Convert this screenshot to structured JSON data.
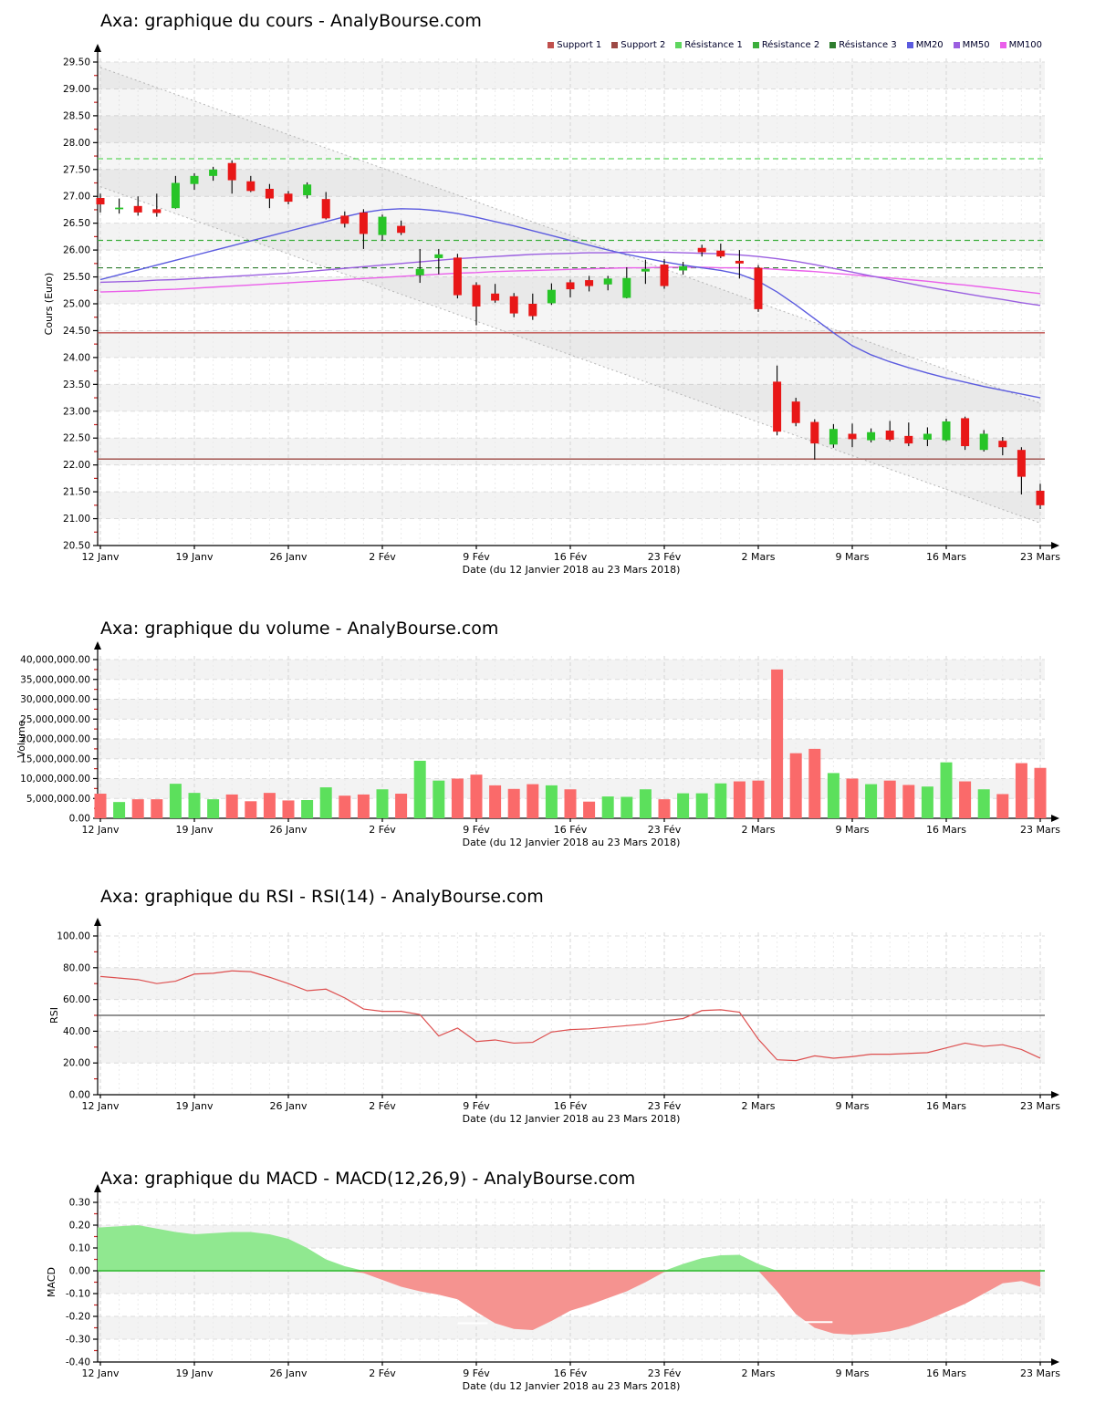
{
  "x_axis": {
    "tick_labels": [
      "12 Janv",
      "19 Janv",
      "26 Janv",
      "2 Fév",
      "9 Fév",
      "16 Fév",
      "23 Fév",
      "2 Mars",
      "9 Mars",
      "16 Mars",
      "23 Mars"
    ],
    "axis_label": "Date (du 12 Janvier 2018 au 23 Mars 2018)",
    "n_points": 51,
    "points_per_tick": 5
  },
  "chart_data": [
    {
      "type": "candlestick",
      "name": "price",
      "title": "Axa: graphique du cours - AnalyBourse.com",
      "ylabel": "Cours (Euro)",
      "ymin": 20.5,
      "ymax": 29.5,
      "ystep": 0.5,
      "y_ticks": [
        "29.50",
        "29.00",
        "28.50",
        "28.00",
        "27.50",
        "27.00",
        "26.50",
        "26.00",
        "25.50",
        "25.00",
        "24.50",
        "24.00",
        "23.50",
        "23.00",
        "22.50",
        "22.00",
        "21.50",
        "21.00",
        "20.50"
      ],
      "legend": [
        {
          "label": "Support 1",
          "color": "#c0504d"
        },
        {
          "label": "Support 2",
          "color": "#9d4a45"
        },
        {
          "label": "Résistance 1",
          "color": "#5fd65f"
        },
        {
          "label": "Résistance 2",
          "color": "#3cae3c"
        },
        {
          "label": "Résistance 3",
          "color": "#2e7d2e"
        },
        {
          "label": "MM20",
          "color": "#5b5bdf"
        },
        {
          "label": "MM50",
          "color": "#9b5fe0"
        },
        {
          "label": "MM100",
          "color": "#ea5fea"
        }
      ],
      "supports": [
        {
          "name": "Support 1",
          "value": 24.46,
          "color": "#c0504d"
        },
        {
          "name": "Support 2",
          "value": 22.11,
          "color": "#9d4a45"
        }
      ],
      "resistances": [
        {
          "name": "Résistance 1",
          "value": 27.7,
          "color": "#5fd65f"
        },
        {
          "name": "Résistance 2",
          "value": 26.18,
          "color": "#3cae3c"
        },
        {
          "name": "Résistance 3",
          "value": 25.67,
          "color": "#2e7d2e"
        }
      ],
      "channel": {
        "upper_start": 29.4,
        "upper_end": 23.15,
        "lower_start": 27.18,
        "lower_end": 20.92
      },
      "series": {
        "mm20": [
          25.45,
          25.54,
          25.63,
          25.72,
          25.81,
          25.9,
          25.99,
          26.08,
          26.17,
          26.26,
          26.35,
          26.44,
          26.53,
          26.62,
          26.7,
          26.75,
          26.77,
          26.76,
          26.73,
          26.68,
          26.61,
          26.53,
          26.45,
          26.36,
          26.27,
          26.18,
          26.09,
          26.0,
          25.92,
          25.85,
          25.78,
          25.72,
          25.67,
          25.62,
          25.55,
          25.42,
          25.22,
          24.98,
          24.72,
          24.46,
          24.22,
          24.05,
          23.92,
          23.81,
          23.71,
          23.62,
          23.54,
          23.46,
          23.39,
          23.32,
          23.25
        ],
        "mm50": [
          25.4,
          25.41,
          25.42,
          25.44,
          25.45,
          25.47,
          25.49,
          25.51,
          25.53,
          25.55,
          25.57,
          25.6,
          25.63,
          25.66,
          25.69,
          25.72,
          25.75,
          25.78,
          25.81,
          25.84,
          25.86,
          25.88,
          25.9,
          25.92,
          25.93,
          25.94,
          25.95,
          25.95,
          25.96,
          25.96,
          25.96,
          25.95,
          25.94,
          25.93,
          25.91,
          25.88,
          25.84,
          25.79,
          25.73,
          25.66,
          25.59,
          25.52,
          25.45,
          25.38,
          25.31,
          25.25,
          25.19,
          25.13,
          25.08,
          25.02,
          24.97
        ],
        "mm100": [
          25.22,
          25.23,
          25.24,
          25.26,
          25.27,
          25.29,
          25.31,
          25.33,
          25.35,
          25.37,
          25.39,
          25.41,
          25.43,
          25.45,
          25.47,
          25.49,
          25.51,
          25.53,
          25.55,
          25.57,
          25.58,
          25.6,
          25.61,
          25.62,
          25.63,
          25.64,
          25.65,
          25.66,
          25.67,
          25.67,
          25.68,
          25.68,
          25.68,
          25.67,
          25.67,
          25.66,
          25.64,
          25.62,
          25.6,
          25.57,
          25.54,
          25.51,
          25.48,
          25.45,
          25.42,
          25.38,
          25.35,
          25.31,
          25.27,
          25.23,
          25.19
        ]
      },
      "candles": [
        {
          "d": "12/01",
          "o": 26.97,
          "h": 27.05,
          "l": 26.7,
          "c": 26.85
        },
        {
          "d": "15/01",
          "o": 26.76,
          "h": 26.96,
          "l": 26.68,
          "c": 26.79
        },
        {
          "d": "16/01",
          "o": 26.82,
          "h": 27.0,
          "l": 26.64,
          "c": 26.7
        },
        {
          "d": "17/01",
          "o": 26.76,
          "h": 27.05,
          "l": 26.62,
          "c": 26.69
        },
        {
          "d": "18/01",
          "o": 26.78,
          "h": 27.38,
          "l": 26.77,
          "c": 27.25
        },
        {
          "d": "19/01",
          "o": 27.23,
          "h": 27.43,
          "l": 27.12,
          "c": 27.38
        },
        {
          "d": "22/01",
          "o": 27.38,
          "h": 27.55,
          "l": 27.29,
          "c": 27.5
        },
        {
          "d": "23/01",
          "o": 27.62,
          "h": 27.67,
          "l": 27.05,
          "c": 27.3
        },
        {
          "d": "24/01",
          "o": 27.28,
          "h": 27.38,
          "l": 27.08,
          "c": 27.1
        },
        {
          "d": "25/01",
          "o": 27.14,
          "h": 27.23,
          "l": 26.78,
          "c": 26.96
        },
        {
          "d": "26/01",
          "o": 27.05,
          "h": 27.1,
          "l": 26.85,
          "c": 26.9
        },
        {
          "d": "29/01",
          "o": 27.02,
          "h": 27.26,
          "l": 26.96,
          "c": 27.22
        },
        {
          "d": "30/01",
          "o": 26.95,
          "h": 27.08,
          "l": 26.57,
          "c": 26.59
        },
        {
          "d": "31/01",
          "o": 26.64,
          "h": 26.72,
          "l": 26.42,
          "c": 26.49
        },
        {
          "d": "01/02",
          "o": 26.7,
          "h": 26.76,
          "l": 26.02,
          "c": 26.3
        },
        {
          "d": "02/02",
          "o": 26.28,
          "h": 26.66,
          "l": 26.18,
          "c": 26.62
        },
        {
          "d": "05/02",
          "o": 26.45,
          "h": 26.55,
          "l": 26.28,
          "c": 26.32
        },
        {
          "d": "06/02",
          "o": 25.53,
          "h": 26.02,
          "l": 25.39,
          "c": 25.65
        },
        {
          "d": "07/02",
          "o": 25.85,
          "h": 26.02,
          "l": 25.55,
          "c": 25.92
        },
        {
          "d": "08/02",
          "o": 25.86,
          "h": 25.93,
          "l": 25.1,
          "c": 25.16
        },
        {
          "d": "09/02",
          "o": 25.35,
          "h": 25.4,
          "l": 24.6,
          "c": 24.95
        },
        {
          "d": "12/02",
          "o": 25.19,
          "h": 25.37,
          "l": 25.02,
          "c": 25.06
        },
        {
          "d": "13/02",
          "o": 25.14,
          "h": 25.2,
          "l": 24.75,
          "c": 24.82
        },
        {
          "d": "14/02",
          "o": 25.0,
          "h": 25.19,
          "l": 24.7,
          "c": 24.77
        },
        {
          "d": "15/02",
          "o": 25.01,
          "h": 25.38,
          "l": 24.98,
          "c": 25.26
        },
        {
          "d": "16/02",
          "o": 25.4,
          "h": 25.45,
          "l": 25.12,
          "c": 25.27
        },
        {
          "d": "19/02",
          "o": 25.44,
          "h": 25.52,
          "l": 25.23,
          "c": 25.33
        },
        {
          "d": "20/02",
          "o": 25.36,
          "h": 25.52,
          "l": 25.25,
          "c": 25.47
        },
        {
          "d": "21/02",
          "o": 25.11,
          "h": 25.68,
          "l": 25.1,
          "c": 25.48
        },
        {
          "d": "22/02",
          "o": 25.6,
          "h": 25.82,
          "l": 25.37,
          "c": 25.65
        },
        {
          "d": "23/02",
          "o": 25.73,
          "h": 25.83,
          "l": 25.28,
          "c": 25.33
        },
        {
          "d": "26/02",
          "o": 25.62,
          "h": 25.78,
          "l": 25.54,
          "c": 25.7
        },
        {
          "d": "27/02",
          "o": 26.04,
          "h": 26.1,
          "l": 25.88,
          "c": 25.96
        },
        {
          "d": "28/02",
          "o": 25.99,
          "h": 26.12,
          "l": 25.85,
          "c": 25.88
        },
        {
          "d": "01/03",
          "o": 25.8,
          "h": 26.0,
          "l": 25.47,
          "c": 25.75
        },
        {
          "d": "02/03",
          "o": 25.67,
          "h": 25.72,
          "l": 24.85,
          "c": 24.9
        },
        {
          "d": "05/03",
          "o": 23.55,
          "h": 23.85,
          "l": 22.55,
          "c": 22.62
        },
        {
          "d": "06/03",
          "o": 23.18,
          "h": 23.25,
          "l": 22.72,
          "c": 22.78
        },
        {
          "d": "07/03",
          "o": 22.8,
          "h": 22.85,
          "l": 22.1,
          "c": 22.4
        },
        {
          "d": "08/03",
          "o": 22.38,
          "h": 22.76,
          "l": 22.32,
          "c": 22.67
        },
        {
          "d": "09/03",
          "o": 22.58,
          "h": 22.77,
          "l": 22.33,
          "c": 22.48
        },
        {
          "d": "12/03",
          "o": 22.46,
          "h": 22.68,
          "l": 22.42,
          "c": 22.61
        },
        {
          "d": "13/03",
          "o": 22.64,
          "h": 22.82,
          "l": 22.44,
          "c": 22.47
        },
        {
          "d": "14/03",
          "o": 22.54,
          "h": 22.79,
          "l": 22.35,
          "c": 22.4
        },
        {
          "d": "15/03",
          "o": 22.47,
          "h": 22.7,
          "l": 22.35,
          "c": 22.58
        },
        {
          "d": "16/03",
          "o": 22.46,
          "h": 22.86,
          "l": 22.44,
          "c": 22.81
        },
        {
          "d": "19/03",
          "o": 22.87,
          "h": 22.9,
          "l": 22.28,
          "c": 22.35
        },
        {
          "d": "20/03",
          "o": 22.28,
          "h": 22.65,
          "l": 22.25,
          "c": 22.58
        },
        {
          "d": "21/03",
          "o": 22.45,
          "h": 22.52,
          "l": 22.18,
          "c": 22.33
        },
        {
          "d": "22/03",
          "o": 22.28,
          "h": 22.33,
          "l": 21.45,
          "c": 21.78
        },
        {
          "d": "23/03",
          "o": 21.52,
          "h": 21.65,
          "l": 21.18,
          "c": 21.25
        }
      ],
      "candle_colors": {
        "up": "#27c427",
        "down": "#e81717"
      }
    },
    {
      "type": "bar",
      "name": "volume",
      "title": "Axa: graphique du volume - AnalyBourse.com",
      "ylabel": "Volume",
      "ymin": 0,
      "ymax": 40000000,
      "ystep": 5000000,
      "y_ticks": [
        "40,000,000.00",
        "35,000,000.00",
        "30,000,000.00",
        "25,000,000.00",
        "20,000,000.00",
        "15,000,000.00",
        "10,000,000.00",
        "5,000,000.00",
        "0.00"
      ],
      "colors": {
        "up": "#5ce05c",
        "down": "#fa6a6a"
      },
      "values": [
        6200000,
        4100000,
        4800000,
        4800000,
        8700000,
        6400000,
        4800000,
        6000000,
        4300000,
        6400000,
        4500000,
        4600000,
        7800000,
        5700000,
        6000000,
        7300000,
        6200000,
        14500000,
        9500000,
        10000000,
        11000000,
        8300000,
        7400000,
        8600000,
        8300000,
        7300000,
        4200000,
        5500000,
        5400000,
        7300000,
        4800000,
        6300000,
        6300000,
        8800000,
        9300000,
        9500000,
        37500000,
        16400000,
        17500000,
        11400000,
        10000000,
        8600000,
        9500000,
        8400000,
        8000000,
        14100000,
        9300000,
        7300000,
        6100000,
        13900000,
        12700000
      ],
      "directions": [
        "d",
        "u",
        "d",
        "d",
        "u",
        "u",
        "u",
        "d",
        "d",
        "d",
        "d",
        "u",
        "u",
        "d",
        "d",
        "u",
        "d",
        "u",
        "u",
        "d",
        "d",
        "d",
        "d",
        "d",
        "u",
        "d",
        "d",
        "u",
        "u",
        "u",
        "d",
        "u",
        "u",
        "u",
        "d",
        "d",
        "d",
        "d",
        "d",
        "u",
        "d",
        "u",
        "d",
        "d",
        "u",
        "u",
        "d",
        "u",
        "d",
        "d",
        "d"
      ]
    },
    {
      "type": "line",
      "name": "rsi",
      "title": "Axa: graphique du RSI - RSI(14) - AnalyBourse.com",
      "ylabel": "RSI",
      "ymin": 0,
      "ymax": 100,
      "ystep": 20,
      "y_ticks": [
        "100.00",
        "80.00",
        "60.00",
        "40.00",
        "20.00",
        "0.00"
      ],
      "midline": 50,
      "line_color": "#dd4f4f",
      "values": [
        74.5,
        73.5,
        72.5,
        70,
        71.5,
        76,
        76.5,
        78,
        77.5,
        74,
        70,
        65.5,
        66.5,
        61,
        54,
        52.5,
        52.5,
        50.5,
        37,
        42,
        33.5,
        34.5,
        32.5,
        33,
        39.5,
        41,
        41.5,
        42.5,
        43.5,
        44.5,
        46.5,
        48,
        53,
        53.5,
        52,
        35,
        22,
        21.5,
        24.5,
        23,
        24,
        25.5,
        25.5,
        26,
        26.5,
        29.5,
        32.5,
        30.5,
        31.5,
        28.5,
        23
      ]
    },
    {
      "type": "area",
      "name": "macd",
      "title": "Axa: graphique du MACD - MACD(12,26,9) - AnalyBourse.com",
      "ylabel": "MACD",
      "ymin": -0.4,
      "ymax": 0.3,
      "ystep": 0.1,
      "y_ticks": [
        "0.30",
        "0.20",
        "0.10",
        "0.00",
        "-0.10",
        "-0.20",
        "-0.30",
        "-0.40"
      ],
      "colors": {
        "positive": "#90e890",
        "negative": "#f59390",
        "zero_line": "#3fbf3f"
      },
      "values": [
        0.19,
        0.195,
        0.2,
        0.185,
        0.17,
        0.16,
        0.165,
        0.17,
        0.17,
        0.16,
        0.14,
        0.1,
        0.05,
        0.02,
        -0.01,
        -0.04,
        -0.07,
        -0.09,
        -0.105,
        -0.125,
        -0.18,
        -0.23,
        -0.255,
        -0.26,
        -0.22,
        -0.175,
        -0.15,
        -0.12,
        -0.09,
        -0.05,
        -0.005,
        0.03,
        0.055,
        0.068,
        0.07,
        0.03,
        -0.09,
        -0.19,
        -0.25,
        -0.275,
        -0.28,
        -0.275,
        -0.265,
        -0.245,
        -0.215,
        -0.18,
        -0.145,
        -0.1,
        -0.055,
        -0.045,
        -0.07
      ],
      "signal_dashes": [
        {
          "i": 14.8,
          "v": -0.11,
          "len": 2.2
        },
        {
          "i": 16.5,
          "v": -0.128,
          "len": 1.6
        },
        {
          "i": 18.6,
          "v": -0.196,
          "len": 1.4
        },
        {
          "i": 19.8,
          "v": -0.23,
          "len": 1.6
        },
        {
          "i": 38.2,
          "v": -0.225,
          "len": 1.5
        }
      ]
    }
  ]
}
